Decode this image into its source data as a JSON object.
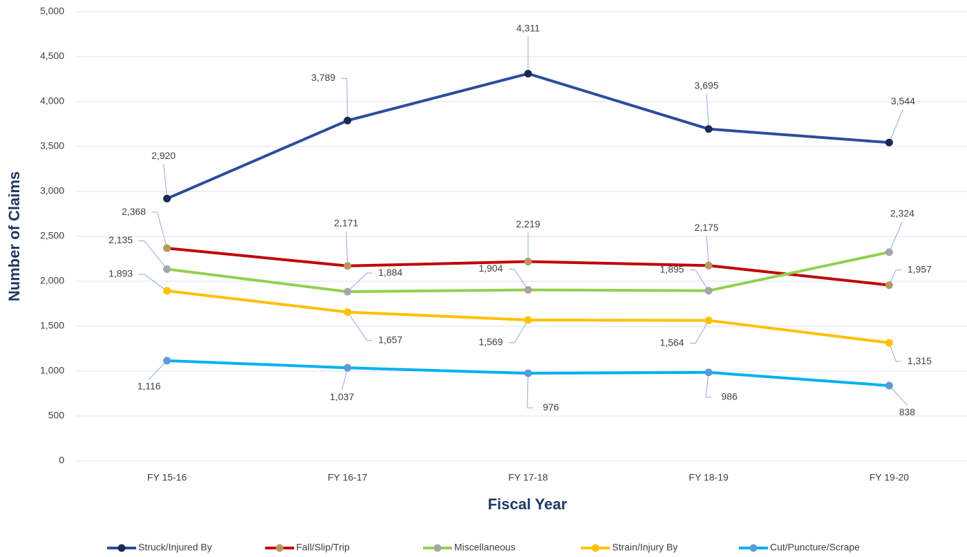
{
  "chart_data": {
    "type": "line",
    "x_label": "Fiscal Year",
    "y_label": "Number of Claims",
    "categories": [
      "FY 15-16",
      "FY 16-17",
      "FY 17-18",
      "FY 18-19",
      "FY 19-20"
    ],
    "ylim": [
      0,
      5000
    ],
    "yticks": [
      0,
      500,
      {
        "value": 1000,
        "label": "1,000"
      },
      {
        "value": 1500,
        "label": "1,500"
      },
      {
        "value": 2000,
        "label": "2,000"
      },
      {
        "value": 2500,
        "label": "2,500"
      },
      {
        "value": 3000,
        "label": "3,000"
      },
      {
        "value": 3500,
        "label": "3,500"
      },
      {
        "value": 4000,
        "label": "4,000"
      },
      {
        "value": 4500,
        "label": "4,500"
      },
      {
        "value": 5000,
        "label": "5,000"
      }
    ],
    "grid": true,
    "legend": "bottom",
    "series": [
      {
        "name": "Struck/Injured By",
        "color": "#2f4b9c",
        "marker_color": "#1b2a52",
        "values": [
          2920,
          3789,
          4311,
          3695,
          3544
        ],
        "value_labels": [
          "2,920",
          "3,789",
          "4,311",
          "3,695",
          "3,544"
        ]
      },
      {
        "name": "Fall/Slip/Trip",
        "color": "#c00000",
        "marker_color": "#b8975c",
        "values": [
          2368,
          2171,
          2219,
          2175,
          1957
        ],
        "value_labels": [
          "2,368",
          "2,171",
          "2,219",
          "2,175",
          "1,957"
        ]
      },
      {
        "name": "Miscellaneous",
        "color": "#92d050",
        "marker_color": "#a6a6a6",
        "values": [
          2135,
          1884,
          1904,
          1895,
          2324
        ],
        "value_labels": [
          "2,135",
          "1,884",
          "1,904",
          "1,895",
          "2,324"
        ]
      },
      {
        "name": "Strain/Injury By",
        "color": "#ffc000",
        "marker_color": "#ffc000",
        "values": [
          1893,
          1657,
          1569,
          1564,
          1315
        ],
        "value_labels": [
          "1,893",
          "1,657",
          "1,569",
          "1,564",
          "1,315"
        ]
      },
      {
        "name": "Cut/Puncture/Scrape",
        "color": "#00b0f0",
        "marker_color": "#5b9bd5",
        "values": [
          1116,
          1037,
          976,
          986,
          838
        ],
        "value_labels": [
          "1,116",
          "1,037",
          "976",
          "986",
          "838"
        ]
      }
    ]
  }
}
